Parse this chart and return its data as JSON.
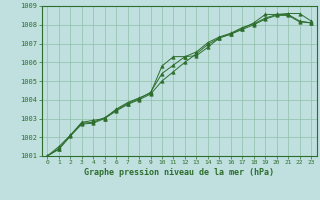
{
  "title": "Graphe pression niveau de la mer (hPa)",
  "bg_color": "#c0e0e0",
  "line_color": "#2d6e2d",
  "marker_color": "#2d6e2d",
  "grid_color": "#90c0a8",
  "text_color": "#2d6e2d",
  "xlim": [
    -0.5,
    23.5
  ],
  "ylim": [
    1001,
    1009
  ],
  "xticks": [
    0,
    1,
    2,
    3,
    4,
    5,
    6,
    7,
    8,
    9,
    10,
    11,
    12,
    13,
    14,
    15,
    16,
    17,
    18,
    19,
    20,
    21,
    22,
    23
  ],
  "yticks": [
    1001,
    1002,
    1003,
    1004,
    1005,
    1006,
    1007,
    1008,
    1009
  ],
  "series": [
    [
      1001.0,
      1001.5,
      1002.1,
      1002.8,
      1002.9,
      1003.0,
      1003.5,
      1003.85,
      1004.1,
      1004.35,
      1005.8,
      1006.3,
      1006.3,
      1006.35,
      1006.8,
      1007.3,
      1007.5,
      1007.8,
      1008.1,
      1008.55,
      1008.55,
      1008.6,
      1008.6,
      1008.2
    ],
    [
      1001.0,
      1001.4,
      1002.1,
      1002.75,
      1002.8,
      1003.05,
      1003.45,
      1003.8,
      1004.05,
      1004.4,
      1005.4,
      1005.85,
      1006.3,
      1006.55,
      1007.05,
      1007.35,
      1007.55,
      1007.85,
      1008.05,
      1008.35,
      1008.55,
      1008.55,
      1008.2,
      1008.1
    ],
    [
      1001.0,
      1001.35,
      1002.05,
      1002.7,
      1002.75,
      1003.0,
      1003.4,
      1003.75,
      1004.0,
      1004.3,
      1005.0,
      1005.5,
      1006.0,
      1006.45,
      1006.95,
      1007.3,
      1007.5,
      1007.75,
      1008.0,
      1008.3,
      1008.5,
      1008.5,
      1008.15,
      1008.1
    ]
  ]
}
